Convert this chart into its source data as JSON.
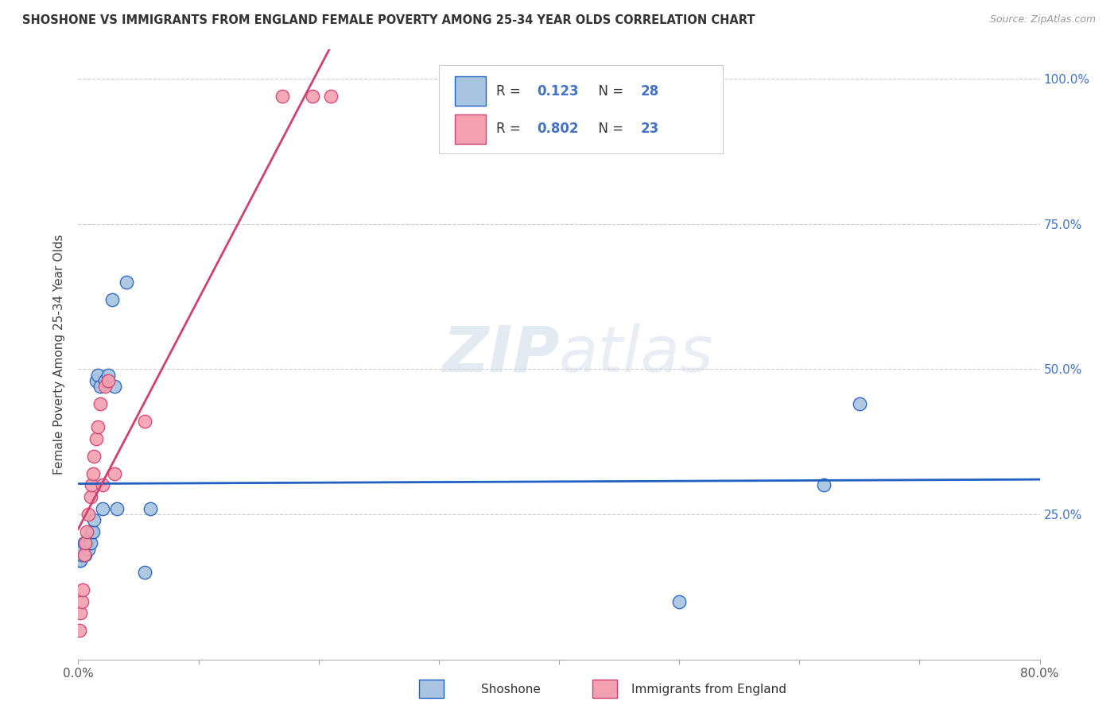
{
  "title": "SHOSHONE VS IMMIGRANTS FROM ENGLAND FEMALE POVERTY AMONG 25-34 YEAR OLDS CORRELATION CHART",
  "source": "Source: ZipAtlas.com",
  "ylabel": "Female Poverty Among 25-34 Year Olds",
  "xlabel_shoshone": "Shoshone",
  "xlabel_england": "Immigrants from England",
  "xlim": [
    0.0,
    0.8
  ],
  "ylim": [
    0.0,
    1.05
  ],
  "r_shoshone": 0.123,
  "n_shoshone": 28,
  "r_england": 0.802,
  "n_england": 23,
  "shoshone_color": "#a8c4e0",
  "england_color": "#f4a0b0",
  "line_shoshone_color": "#2060c0",
  "line_england_color": "#d04070",
  "watermark": "ZIPatlas",
  "shoshone_x": [
    0.001,
    0.002,
    0.003,
    0.004,
    0.005,
    0.006,
    0.007,
    0.008,
    0.009,
    0.01,
    0.011,
    0.012,
    0.013,
    0.015,
    0.016,
    0.018,
    0.02,
    0.022,
    0.025,
    0.028,
    0.03,
    0.032,
    0.04,
    0.055,
    0.06,
    0.5,
    0.62,
    0.65
  ],
  "shoshone_y": [
    0.17,
    0.17,
    0.18,
    0.19,
    0.2,
    0.18,
    0.2,
    0.19,
    0.21,
    0.2,
    0.22,
    0.22,
    0.24,
    0.48,
    0.49,
    0.47,
    0.26,
    0.48,
    0.49,
    0.62,
    0.47,
    0.26,
    0.65,
    0.15,
    0.26,
    0.1,
    0.3,
    0.44
  ],
  "england_x": [
    0.001,
    0.002,
    0.003,
    0.004,
    0.005,
    0.006,
    0.007,
    0.008,
    0.01,
    0.011,
    0.012,
    0.013,
    0.015,
    0.016,
    0.018,
    0.02,
    0.022,
    0.025,
    0.03,
    0.055,
    0.17,
    0.195,
    0.21
  ],
  "england_y": [
    0.05,
    0.08,
    0.1,
    0.12,
    0.18,
    0.2,
    0.22,
    0.25,
    0.28,
    0.3,
    0.32,
    0.35,
    0.38,
    0.4,
    0.44,
    0.3,
    0.47,
    0.48,
    0.32,
    0.41,
    0.97,
    0.97,
    0.97
  ]
}
